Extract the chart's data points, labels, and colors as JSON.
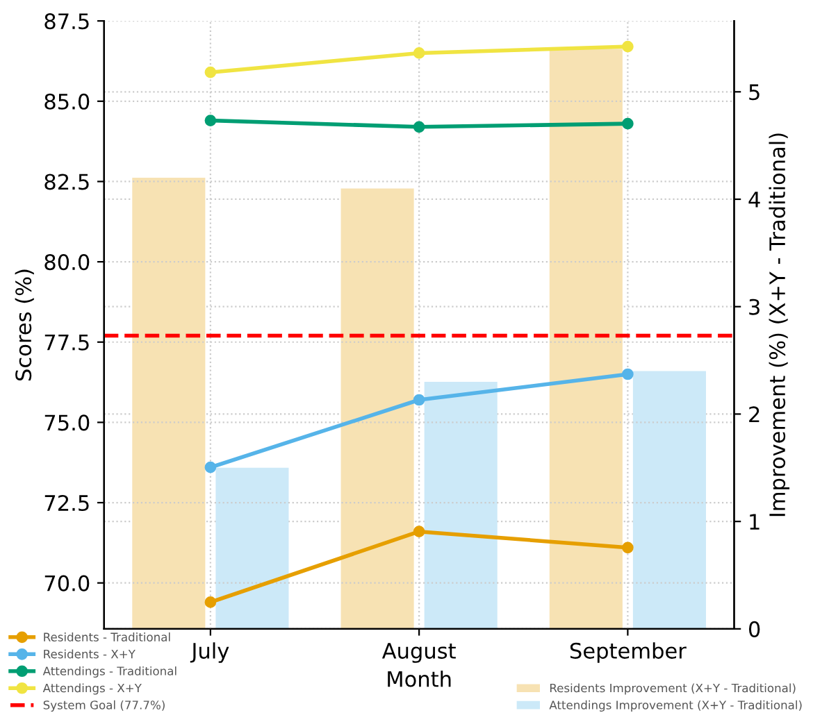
{
  "chart_data": {
    "type": "line",
    "xlabel": "Month",
    "ylabel": "Scores (%)",
    "y2label": "Improvement (%) (X+Y - Traditional)",
    "categories": [
      "July",
      "August",
      "September"
    ],
    "series": [
      {
        "name": "Residents - Traditional",
        "color": "#e69f00",
        "values": [
          69.4,
          71.6,
          71.1
        ]
      },
      {
        "name": "Residents - X+Y",
        "color": "#56b4e9",
        "values": [
          73.6,
          75.7,
          76.5
        ]
      },
      {
        "name": "Attendings - Traditional",
        "color": "#009e73",
        "values": [
          84.4,
          84.2,
          84.3
        ]
      },
      {
        "name": "Attendings - X+Y",
        "color": "#f0e442",
        "values": [
          85.9,
          86.5,
          86.7
        ]
      },
      {
        "name": "Residents Improvement (X+Y - Traditional)",
        "type": "bar",
        "axis": "y2",
        "color": "#f7e2b3",
        "values": [
          4.2,
          4.1,
          5.4
        ]
      },
      {
        "name": "Attendings Improvement (X+Y - Traditional)",
        "type": "bar",
        "axis": "y2",
        "color": "#cce9f8",
        "values": [
          1.5,
          2.3,
          2.4
        ]
      }
    ],
    "ref_lines": [
      {
        "axis": "y",
        "value": 77.7,
        "label": "System Goal (77.7%)",
        "color": "#ff0000",
        "line_style": "dashed"
      }
    ],
    "ylim": [
      68.57,
      87.5
    ],
    "yticks": [
      {
        "value": 70,
        "label": "70.0"
      },
      72.5,
      {
        "value": 75,
        "label": "75.0"
      },
      77.5,
      {
        "value": 80,
        "label": "80.0"
      },
      82.5,
      {
        "value": 85,
        "label": "85.0"
      },
      87.5
    ],
    "y2lim": [
      0,
      5.66
    ],
    "y2ticks": [
      0,
      1,
      2,
      3,
      4,
      5
    ],
    "grid": true,
    "legend": "bottom",
    "marker": "circle",
    "line_style": "solid"
  }
}
